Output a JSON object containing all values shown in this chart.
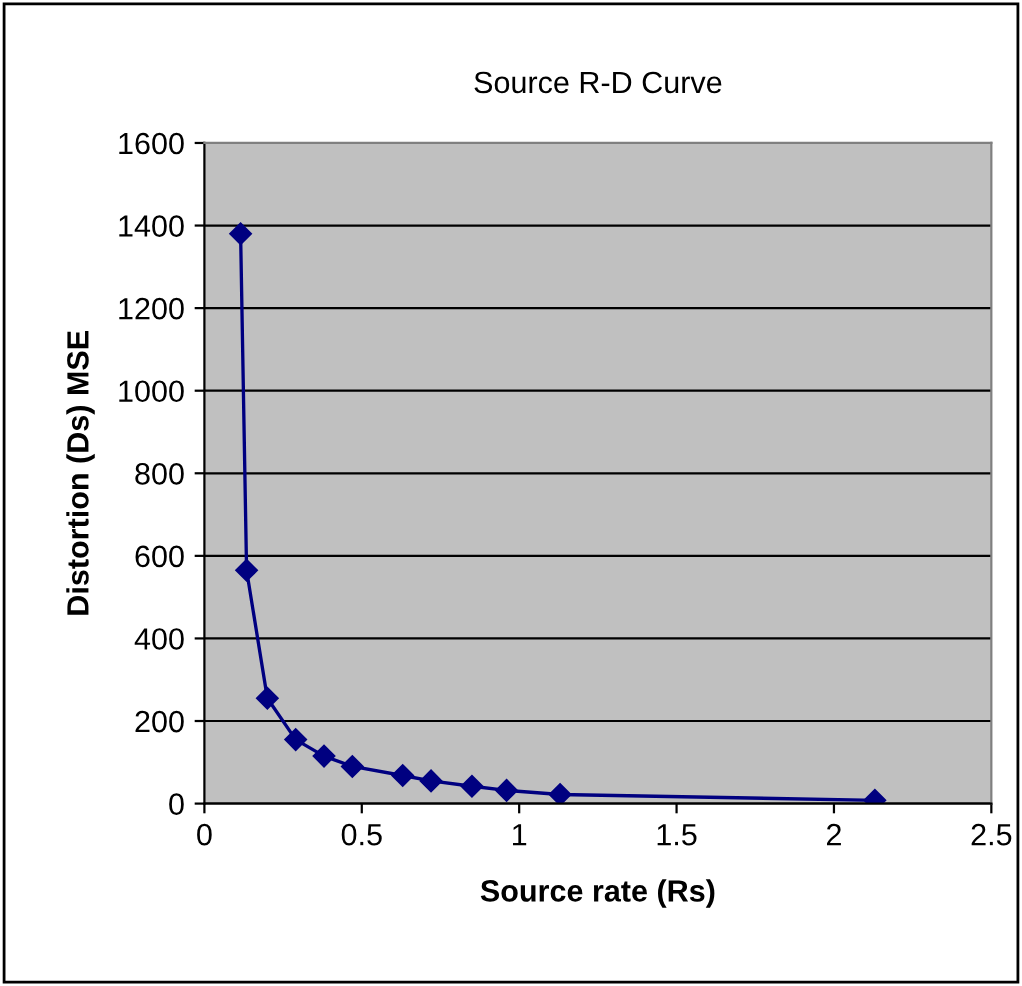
{
  "chart_data": {
    "type": "line",
    "title": "Source R-D Curve",
    "xlabel": "Source rate (Rs)",
    "ylabel": "Distortion (Ds) MSE",
    "series": [
      {
        "color": "#000080",
        "x": [
          0.115,
          0.134,
          0.2,
          0.29,
          0.38,
          0.47,
          0.63,
          0.72,
          0.85,
          0.96,
          1.13,
          2.13
        ],
        "values": [
          1380,
          565,
          255,
          155,
          115,
          90,
          68,
          55,
          42,
          32,
          22,
          8
        ]
      }
    ],
    "xlim": [
      0,
      2.5
    ],
    "xticks": [
      0,
      0.5,
      1,
      1.5,
      2,
      2.5
    ],
    "ylim": [
      0,
      1600
    ],
    "yticks": [
      0,
      200,
      400,
      600,
      800,
      1000,
      1200,
      1400,
      1600
    ],
    "grid": "y",
    "legend": false,
    "marker": "diamond",
    "line_style": "solid"
  }
}
